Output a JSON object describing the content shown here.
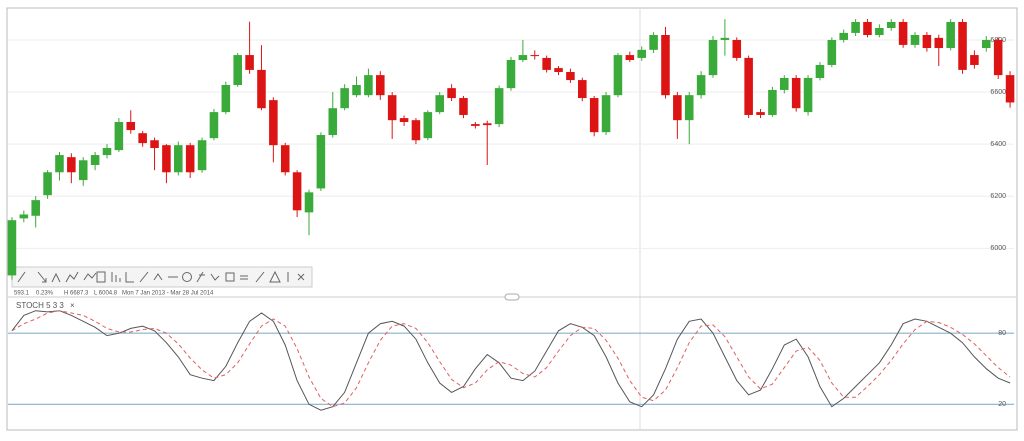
{
  "chart_data": [
    {
      "type": "candlestick",
      "open": [
        5896,
        6115,
        6125,
        6204,
        6292,
        6350,
        6262,
        6320,
        6358,
        6377,
        6485,
        6442,
        6415,
        6396,
        6292,
        6396,
        6300,
        6423,
        6523,
        6627,
        6742,
        6685,
        6569,
        6396,
        6292,
        6138,
        6230,
        6435,
        6538,
        6588,
        6588,
        6665,
        6588,
        6500,
        6492,
        6423,
        6523,
        6615,
        6577,
        6477,
        6480,
        6477,
        6615,
        6723,
        6742,
        6731,
        6692,
        6677,
        6646,
        6577,
        6446,
        6588,
        6742,
        6731,
        6762,
        6819,
        6588,
        6492,
        6588,
        6665,
        6800,
        6800,
        6731,
        6523,
        6512,
        6608,
        6654,
        6523,
        6654,
        6704,
        6800,
        6827,
        6869,
        6819,
        6846,
        6869,
        6781,
        6819,
        6808,
        6769,
        6869,
        6742,
        6769,
        6800,
        6665
      ],
      "high": [
        6120,
        6145,
        6200,
        6300,
        6370,
        6365,
        6350,
        6370,
        6400,
        6500,
        6530,
        6450,
        6425,
        6400,
        6410,
        6405,
        6425,
        6535,
        6640,
        6750,
        6870,
        6780,
        6580,
        6405,
        6300,
        6225,
        6445,
        6600,
        6630,
        6660,
        6690,
        6680,
        6600,
        6510,
        6500,
        6530,
        6600,
        6630,
        6585,
        6485,
        6490,
        6625,
        6735,
        6800,
        6760,
        6740,
        6700,
        6690,
        6655,
        6585,
        6600,
        6750,
        6755,
        6775,
        6830,
        6850,
        6600,
        6600,
        6680,
        6815,
        6880,
        6810,
        6740,
        6535,
        6620,
        6665,
        6665,
        6665,
        6715,
        6810,
        6840,
        6880,
        6880,
        6860,
        6880,
        6880,
        6830,
        6830,
        6820,
        6880,
        6880,
        6760,
        6815,
        6810,
        6680
      ],
      "low": [
        5880,
        6100,
        6080,
        6190,
        6260,
        6250,
        6240,
        6300,
        6345,
        6370,
        6440,
        6390,
        6300,
        6250,
        6280,
        6270,
        6290,
        6415,
        6515,
        6620,
        6670,
        6530,
        6330,
        6280,
        6120,
        6050,
        6220,
        6425,
        6530,
        6580,
        6580,
        6570,
        6420,
        6470,
        6400,
        6415,
        6515,
        6565,
        6500,
        6460,
        6320,
        6465,
        6605,
        6715,
        6725,
        6675,
        6665,
        6635,
        6565,
        6430,
        6435,
        6580,
        6715,
        6720,
        6750,
        6575,
        6420,
        6400,
        6575,
        6655,
        6740,
        6720,
        6500,
        6500,
        6505,
        6595,
        6525,
        6510,
        6645,
        6695,
        6790,
        6815,
        6810,
        6810,
        6835,
        6770,
        6770,
        6755,
        6700,
        6760,
        6670,
        6690,
        6755,
        6650,
        6540
      ],
      "close": [
        6108,
        6130,
        6185,
        6292,
        6358,
        6292,
        6338,
        6358,
        6385,
        6485,
        6454,
        6404,
        6385,
        6292,
        6396,
        6292,
        6415,
        6523,
        6627,
        6742,
        6685,
        6538,
        6396,
        6292,
        6146,
        6215,
        6435,
        6538,
        6615,
        6627,
        6665,
        6588,
        6492,
        6485,
        6415,
        6523,
        6588,
        6577,
        6512,
        6470,
        6473,
        6615,
        6723,
        6742,
        6738,
        6685,
        6677,
        6646,
        6577,
        6446,
        6588,
        6742,
        6723,
        6762,
        6819,
        6588,
        6492,
        6588,
        6665,
        6800,
        6808,
        6731,
        6512,
        6512,
        6608,
        6654,
        6538,
        6654,
        6704,
        6800,
        6827,
        6869,
        6819,
        6846,
        6869,
        6781,
        6819,
        6769,
        6769,
        6869,
        6685,
        6704,
        6800,
        6665,
        6560
      ],
      "up_color": "#3aaa3a",
      "down_color": "#dd1414",
      "ylim": [
        5840,
        6915
      ],
      "yticks": [
        6000,
        6200,
        6400,
        6600,
        6800
      ],
      "grid": true
    },
    {
      "type": "line",
      "title": "STOCH 5 3 3",
      "series": [
        {
          "color": "#555555",
          "dashed": false,
          "values": [
            82,
            95,
            99,
            98,
            99,
            95,
            90,
            85,
            78,
            80,
            84,
            86,
            82,
            72,
            60,
            45,
            42,
            40,
            52,
            72,
            90,
            97,
            90,
            70,
            40,
            20,
            15,
            18,
            30,
            55,
            80,
            88,
            90,
            86,
            75,
            55,
            38,
            30,
            35,
            50,
            62,
            55,
            42,
            40,
            48,
            65,
            82,
            88,
            85,
            78,
            60,
            38,
            22,
            18,
            28,
            50,
            75,
            90,
            92,
            80,
            60,
            40,
            28,
            32,
            50,
            70,
            75,
            60,
            35,
            18,
            25,
            35,
            45,
            55,
            70,
            88,
            92,
            90,
            85,
            80,
            72,
            60,
            50,
            42,
            38
          ]
        },
        {
          "color": "#e06060",
          "dashed": true,
          "values": [
            82,
            88,
            92,
            97,
            99,
            97,
            95,
            90,
            84,
            81,
            81,
            83,
            84,
            80,
            71,
            59,
            49,
            42,
            45,
            55,
            71,
            86,
            92,
            86,
            67,
            43,
            25,
            18,
            21,
            34,
            55,
            74,
            86,
            88,
            84,
            72,
            56,
            41,
            34,
            38,
            49,
            56,
            53,
            46,
            43,
            51,
            65,
            78,
            85,
            84,
            74,
            59,
            40,
            26,
            23,
            32,
            51,
            72,
            86,
            87,
            77,
            60,
            43,
            33,
            37,
            51,
            65,
            68,
            57,
            38,
            26,
            26,
            35,
            45,
            57,
            71,
            83,
            90,
            89,
            85,
            79,
            71,
            61,
            51,
            43
          ]
        }
      ],
      "ylim": [
        0,
        108
      ],
      "yticks": [
        20,
        80
      ],
      "grid": true
    }
  ],
  "toolbar": {
    "items": [
      "593.1",
      "0.23%",
      "H 6687.3",
      "L 6004.8",
      "Mon 7 Jan 2013 - Mar 28 Jul 2014"
    ]
  }
}
